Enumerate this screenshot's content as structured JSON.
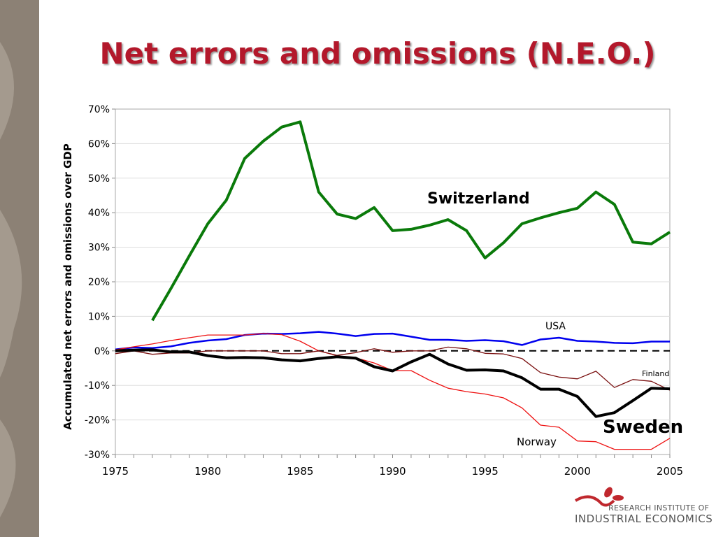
{
  "title": "Net errors and omissions (N.E.O.)",
  "logo": {
    "line1": "RESEARCH INSTITUTE OF",
    "line2": "INDUSTRIAL ECONOMICS"
  },
  "chart_data": {
    "type": "line",
    "title": "Net errors and omissions (N.E.O.)",
    "xlabel": "",
    "ylabel": "Accumulated net errors and omissions over GDP",
    "xlim": [
      1975,
      2005
    ],
    "ylim": [
      -30,
      70
    ],
    "x_ticks": [
      "1975",
      "1980",
      "1985",
      "1990",
      "1995",
      "2000",
      "2005"
    ],
    "y_ticks": [
      "70%",
      "60%",
      "50%",
      "40%",
      "30%",
      "20%",
      "10%",
      "0%",
      "-10%",
      "-20%",
      "-30%"
    ],
    "grid": true,
    "x": [
      1975,
      1976,
      1977,
      1978,
      1979,
      1980,
      1981,
      1982,
      1983,
      1984,
      1985,
      1986,
      1987,
      1988,
      1989,
      1990,
      1991,
      1992,
      1993,
      1994,
      1995,
      1996,
      1997,
      1998,
      1999,
      2000,
      2001,
      2002,
      2003,
      2004,
      2005
    ],
    "series": [
      {
        "name": "Switzerland",
        "color": "#0a7a0a",
        "values": [
          null,
          null,
          8.8,
          18,
          27.5,
          36.8,
          43.6,
          55.7,
          60.7,
          64.8,
          66.3,
          46,
          39.6,
          38.3,
          41.5,
          34.8,
          35.2,
          36.4,
          38,
          34.8,
          26.9,
          31.3,
          36.8,
          38.5,
          40,
          41.3,
          46,
          42.4,
          31.5,
          31,
          34.4
        ]
      },
      {
        "name": "USA",
        "color": "#0000ee",
        "values": [
          0.4,
          1.0,
          0.8,
          1.3,
          2.3,
          3.0,
          3.4,
          4.6,
          5.0,
          4.9,
          5.1,
          5.5,
          5.0,
          4.3,
          4.9,
          5.0,
          4.1,
          3.2,
          3.2,
          2.9,
          3.1,
          2.8,
          1.7,
          3.3,
          3.8,
          2.9,
          2.7,
          2.3,
          2.2,
          2.7,
          2.7
        ]
      },
      {
        "name": "Norway",
        "color": "#ee1111",
        "values": [
          0.3,
          1.2,
          2.0,
          3.0,
          3.8,
          4.6,
          4.6,
          4.6,
          5.0,
          4.7,
          2.8,
          0.0,
          -1.4,
          -2.0,
          -3.5,
          -5.7,
          -5.7,
          -8.5,
          -10.8,
          -11.8,
          -12.5,
          -13.6,
          -16.5,
          -21.5,
          -22.1,
          -26.1,
          -26.3,
          -28.5,
          -28.5,
          -28.5,
          -25.3
        ]
      },
      {
        "name": "Finland",
        "color": "#7a1010",
        "values": [
          -0.8,
          0,
          -1.0,
          -0.6,
          -0.6,
          0,
          0,
          0,
          0,
          -0.8,
          -0.8,
          0,
          -1.3,
          -0.5,
          0.6,
          -0.4,
          0,
          0,
          1.1,
          0.6,
          -0.7,
          -0.9,
          -2.2,
          -6.3,
          -7.6,
          -8.1,
          -5.9,
          -10.6,
          -8.3,
          -8.8,
          -11.4
        ]
      },
      {
        "name": "Sweden",
        "color": "#000000",
        "values": [
          0,
          0.2,
          0.3,
          -0.3,
          -0.3,
          -1.4,
          -2.0,
          -1.9,
          -2.0,
          -2.6,
          -2.9,
          -2.2,
          -1.7,
          -2.1,
          -4.6,
          -5.8,
          -3.2,
          -1.0,
          -3.8,
          -5.6,
          -5.5,
          -5.8,
          -7.8,
          -11.1,
          -11.1,
          -13.2,
          -19.0,
          -17.9,
          -14.4,
          -10.8,
          -11.0
        ]
      }
    ],
    "annotations": [
      "Switzerland",
      "USA",
      "Finland",
      "Sweden",
      "Norway"
    ]
  }
}
